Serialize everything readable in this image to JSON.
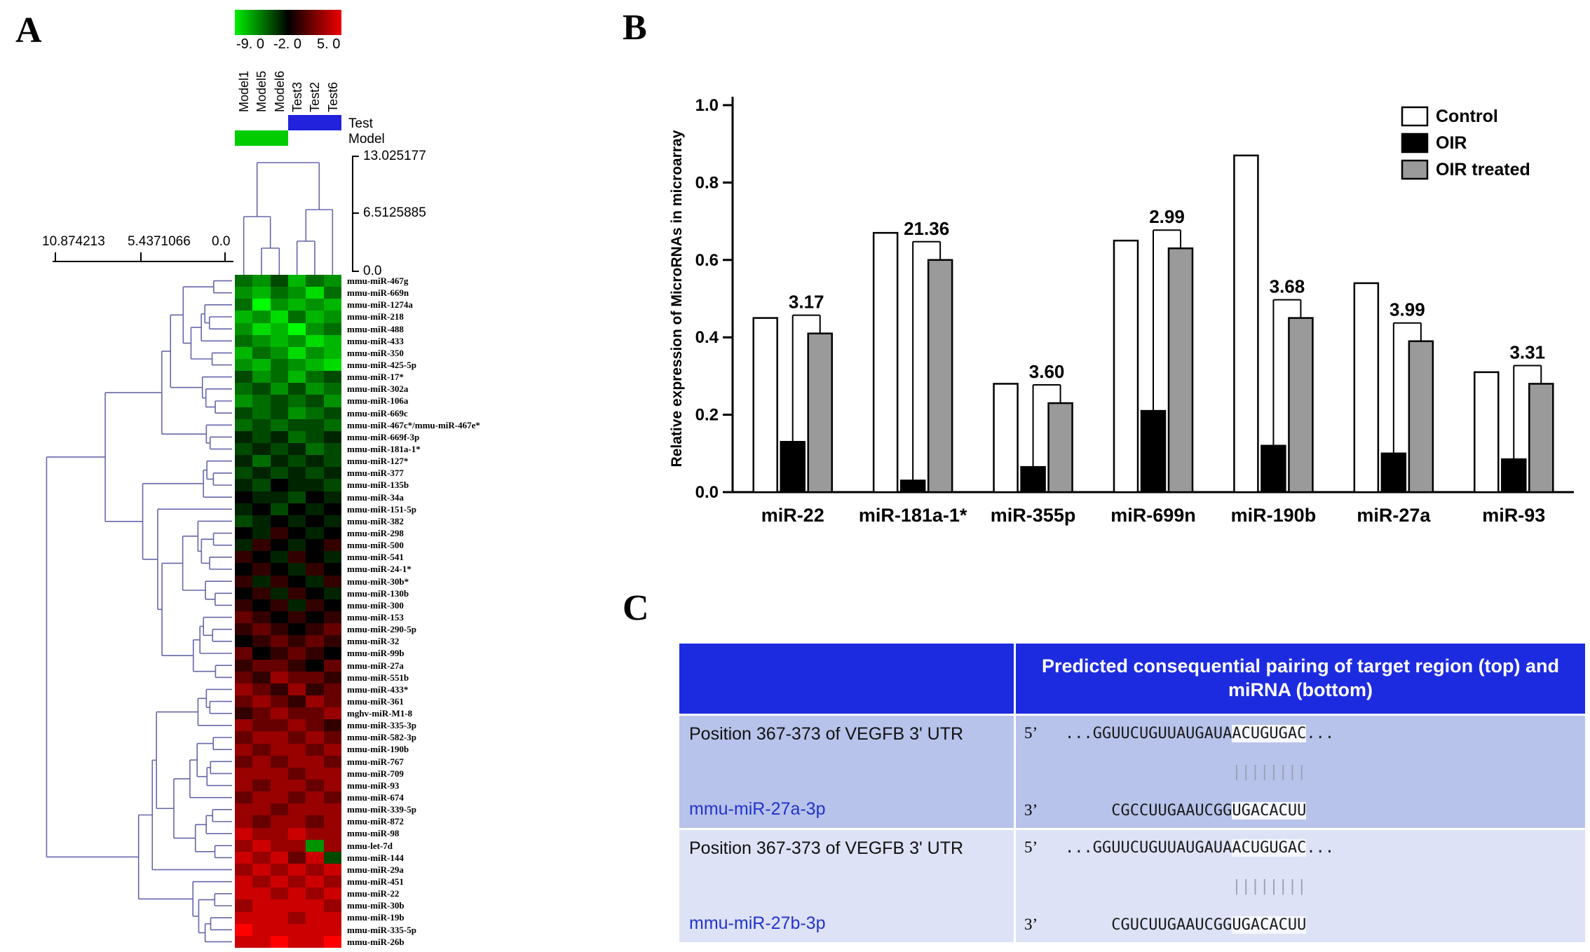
{
  "panelA": {
    "label": "A",
    "colorscale_ticks": [
      "-9. 0",
      "-2. 0",
      "5. 0"
    ],
    "group_rows": [
      {
        "label": "Test",
        "color": "#2222dd",
        "cols": [
          3,
          5
        ]
      },
      {
        "label": "Model",
        "color": "#00cc00",
        "cols": [
          0,
          2
        ]
      }
    ],
    "top_dendro_ticks": [
      "13.025177",
      "6.5125885",
      "0.0"
    ],
    "left_dendro_ticks": [
      "10.874213",
      "5.4371066",
      "0.0"
    ]
  },
  "panelB": {
    "label": "B"
  },
  "panelC": {
    "label": "C",
    "header": "Predicted consequential pairing of target region (top) and miRNA (bottom)",
    "rows": [
      {
        "position": "Position 367-373 of VEGFB 3' UTR",
        "mirna": "mmu-miR-27a-3p",
        "p5": "5’",
        "p3": "3’",
        "seq5_pre": "...GGUUCUGUUAUGAUA",
        "seq5_seed": "ACUGUGAC",
        "seq5_post": "...",
        "bars": "                  ||||||||",
        "seq3_pre": "     CGCCUUGAAUCGG",
        "seq3_seed": "UGACACUU"
      },
      {
        "position": "Position 367-373 of VEGFB 3' UTR",
        "mirna": "mmu-miR-27b-3p",
        "p5": "5’",
        "p3": "3’",
        "seq5_pre": "...GGUUCUGUUAUGAUA",
        "seq5_seed": "ACUGUGAC",
        "seq5_post": "...",
        "bars": "                  ||||||||",
        "seq3_pre": "     CGUCUUGAAUCGG",
        "seq3_seed": "UGACACUU"
      }
    ]
  },
  "chart_data": [
    {
      "type": "heatmap",
      "title": "miRNA expression clustered heatmap",
      "colorscale": {
        "min": -9.0,
        "mid": -2.0,
        "max": 5.0,
        "low": "#00ee00",
        "mid_color": "#000000",
        "high": "#ee0000"
      },
      "columns": [
        "Model1",
        "Model5",
        "Model6",
        "Test3",
        "Test2",
        "Test6"
      ],
      "rows": [
        "mmu-miR-467g",
        "mmu-miR-669n",
        "mmu-miR-1274a",
        "mmu-miR-218",
        "mmu-miR-488",
        "mmu-miR-433",
        "mmu-miR-350",
        "mmu-miR-425-5p",
        "mmu-miR-17*",
        "mmu-miR-302a",
        "mmu-miR-106a",
        "mmu-miR-669c",
        "mmu-miR-467c*/mmu-miR-467e*",
        "mmu-miR-669f-3p",
        "mmu-miR-181a-1*",
        "mmu-miR-127*",
        "mmu-miR-377",
        "mmu-miR-135b",
        "mmu-miR-34a",
        "mmu-miR-151-5p",
        "mmu-miR-382",
        "mmu-miR-298",
        "mmu-miR-500",
        "mmu-miR-541",
        "mmu-miR-24-1*",
        "mmu-miR-30b*",
        "mmu-miR-130b",
        "mmu-miR-300",
        "mmu-miR-153",
        "mmu-miR-290-5p",
        "mmu-miR-32",
        "mmu-miR-99b",
        "mmu-miR-27a",
        "mmu-miR-551b",
        "mmu-miR-433*",
        "mmu-miR-361",
        "mghv-miR-M1-8",
        "mmu-miR-335-3p",
        "mmu-miR-582-3p",
        "mmu-miR-190b",
        "mmu-miR-767",
        "mmu-miR-709",
        "mmu-miR-93",
        "mmu-miR-674",
        "mmu-miR-339-5p",
        "mmu-miR-872",
        "mmu-miR-98",
        "mmu-let-7d",
        "mmu-miR-144",
        "mmu-miR-29a",
        "mmu-miR-451",
        "mmu-miR-22",
        "mmu-miR-30b",
        "mmu-miR-19b",
        "mmu-miR-335-5p",
        "mmu-miR-26b"
      ],
      "values": [
        [
          -3,
          -4,
          -2,
          -5,
          -3,
          -4
        ],
        [
          -4,
          -5,
          -3,
          -4,
          -6,
          -3
        ],
        [
          -3,
          -7,
          -4,
          -5,
          -4,
          -5
        ],
        [
          -5,
          -4,
          -6,
          -3,
          -5,
          -4
        ],
        [
          -4,
          -6,
          -5,
          -7,
          -4,
          -3
        ],
        [
          -3,
          -4,
          -5,
          -4,
          -6,
          -5
        ],
        [
          -5,
          -3,
          -4,
          -6,
          -4,
          -5
        ],
        [
          -4,
          -5,
          -3,
          -4,
          -5,
          -6
        ],
        [
          -2,
          -4,
          -3,
          -5,
          -3,
          -2
        ],
        [
          -3,
          -2,
          -4,
          -2,
          -4,
          -3
        ],
        [
          -4,
          -3,
          -2,
          -3,
          -2,
          -4
        ],
        [
          -2,
          -3,
          -2,
          -4,
          -3,
          -2
        ],
        [
          -3,
          -2,
          -3,
          -2,
          -2,
          -3
        ],
        [
          -1,
          -2,
          -1,
          -3,
          -2,
          -1
        ],
        [
          -2,
          -1,
          -2,
          -1,
          -3,
          -2
        ],
        [
          -1,
          -3,
          -1,
          -2,
          -1,
          -2
        ],
        [
          -2,
          -1,
          -2,
          -1,
          -2,
          -1
        ],
        [
          -1,
          -2,
          0,
          -1,
          -1,
          -2
        ],
        [
          0,
          -1,
          -1,
          -2,
          0,
          -1
        ],
        [
          -1,
          0,
          -2,
          0,
          -1,
          0
        ],
        [
          -2,
          -1,
          0,
          -1,
          0,
          -1
        ],
        [
          0,
          -1,
          1,
          0,
          -1,
          0
        ],
        [
          -1,
          1,
          0,
          -1,
          0,
          1
        ],
        [
          1,
          0,
          -1,
          1,
          0,
          -1
        ],
        [
          0,
          1,
          0,
          -1,
          1,
          0
        ],
        [
          1,
          -1,
          1,
          0,
          -1,
          1
        ],
        [
          0,
          1,
          -1,
          1,
          0,
          -1
        ],
        [
          1,
          0,
          1,
          -1,
          1,
          0
        ],
        [
          2,
          1,
          0,
          1,
          0,
          1
        ],
        [
          1,
          2,
          1,
          0,
          1,
          2
        ],
        [
          0,
          1,
          2,
          1,
          2,
          1
        ],
        [
          2,
          0,
          1,
          2,
          1,
          0
        ],
        [
          1,
          2,
          2,
          1,
          0,
          2
        ],
        [
          2,
          1,
          3,
          2,
          2,
          1
        ],
        [
          3,
          2,
          1,
          3,
          1,
          2
        ],
        [
          2,
          3,
          2,
          1,
          3,
          2
        ],
        [
          1,
          2,
          3,
          2,
          2,
          3
        ],
        [
          3,
          2,
          2,
          3,
          2,
          1
        ],
        [
          2,
          3,
          3,
          2,
          3,
          2
        ],
        [
          3,
          2,
          3,
          3,
          2,
          3
        ],
        [
          2,
          3,
          2,
          3,
          3,
          2
        ],
        [
          3,
          3,
          3,
          2,
          3,
          3
        ],
        [
          3,
          2,
          3,
          3,
          2,
          3
        ],
        [
          2,
          3,
          3,
          2,
          3,
          2
        ],
        [
          3,
          3,
          2,
          3,
          3,
          3
        ],
        [
          3,
          2,
          3,
          3,
          2,
          3
        ],
        [
          4,
          3,
          3,
          4,
          3,
          3
        ],
        [
          3,
          4,
          3,
          3,
          -4,
          3
        ],
        [
          4,
          3,
          4,
          2,
          4,
          -2
        ],
        [
          3,
          4,
          3,
          4,
          3,
          4
        ],
        [
          4,
          3,
          4,
          3,
          4,
          3
        ],
        [
          4,
          4,
          3,
          4,
          3,
          4
        ],
        [
          3,
          4,
          4,
          4,
          4,
          3
        ],
        [
          4,
          4,
          4,
          3,
          4,
          4
        ],
        [
          5,
          4,
          4,
          4,
          4,
          4
        ],
        [
          4,
          4,
          5,
          4,
          4,
          5
        ]
      ]
    },
    {
      "type": "bar",
      "categories": [
        "miR-22",
        "miR-181a-1*",
        "miR-355p",
        "miR-699n",
        "miR-190b",
        "miR-27a",
        "miR-93"
      ],
      "series": [
        {
          "name": "Control",
          "color": "#ffffff",
          "values": [
            0.45,
            0.67,
            0.28,
            0.65,
            0.87,
            0.54,
            0.31
          ]
        },
        {
          "name": "OIR",
          "color": "#000000",
          "values": [
            0.13,
            0.03,
            0.065,
            0.21,
            0.12,
            0.1,
            0.085
          ]
        },
        {
          "name": "OIR treated",
          "color": "#9a9a9a",
          "values": [
            0.41,
            0.6,
            0.23,
            0.63,
            0.45,
            0.39,
            0.28
          ]
        }
      ],
      "fold_labels": [
        "3.17",
        "21.36",
        "3.60",
        "2.99",
        "3.68",
        "3.99",
        "3.31"
      ],
      "title": "",
      "xlabel": "",
      "ylabel": "Relative expression of MicroRNAs in microarray",
      "ylim": [
        0.0,
        1.0
      ],
      "yticks": [
        "0.0",
        "0.2",
        "0.4",
        "0.6",
        "0.8",
        "1.0"
      ],
      "legend_position": "top-right",
      "grid": false
    }
  ]
}
